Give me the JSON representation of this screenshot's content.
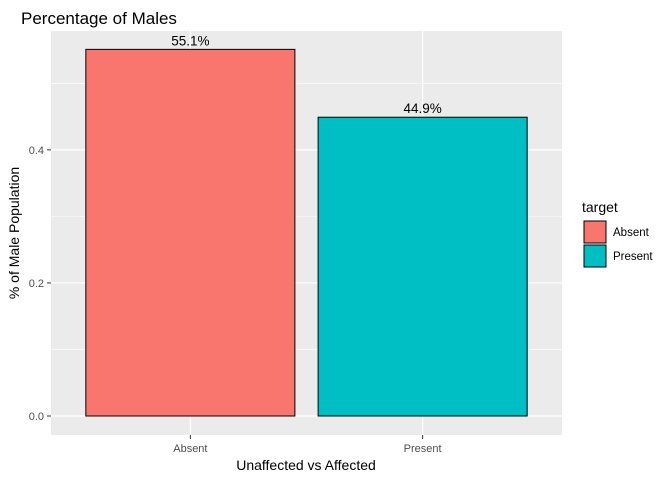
{
  "chart_data": {
    "type": "bar",
    "title": "Percentage of Males",
    "xlabel": "Unaffected vs Affected",
    "ylabel": "% of Male Population",
    "categories": [
      "Absent",
      "Present"
    ],
    "values": [
      0.551,
      0.449
    ],
    "data_labels": [
      "55.1%",
      "44.9%"
    ],
    "ylim": [
      0,
      0.5786
    ],
    "yticks": [
      0.0,
      0.2,
      0.4
    ],
    "ytick_labels": [
      "0.0",
      "0.2",
      "0.4"
    ],
    "grid": true,
    "legend": {
      "title": "target",
      "position": "right",
      "entries": [
        "Absent",
        "Present"
      ]
    },
    "colors": {
      "Absent": "#f8766d",
      "Present": "#00bfc4",
      "panel": "#ebebeb",
      "gridline": "#ffffff",
      "bar_outline": "#000000"
    }
  }
}
